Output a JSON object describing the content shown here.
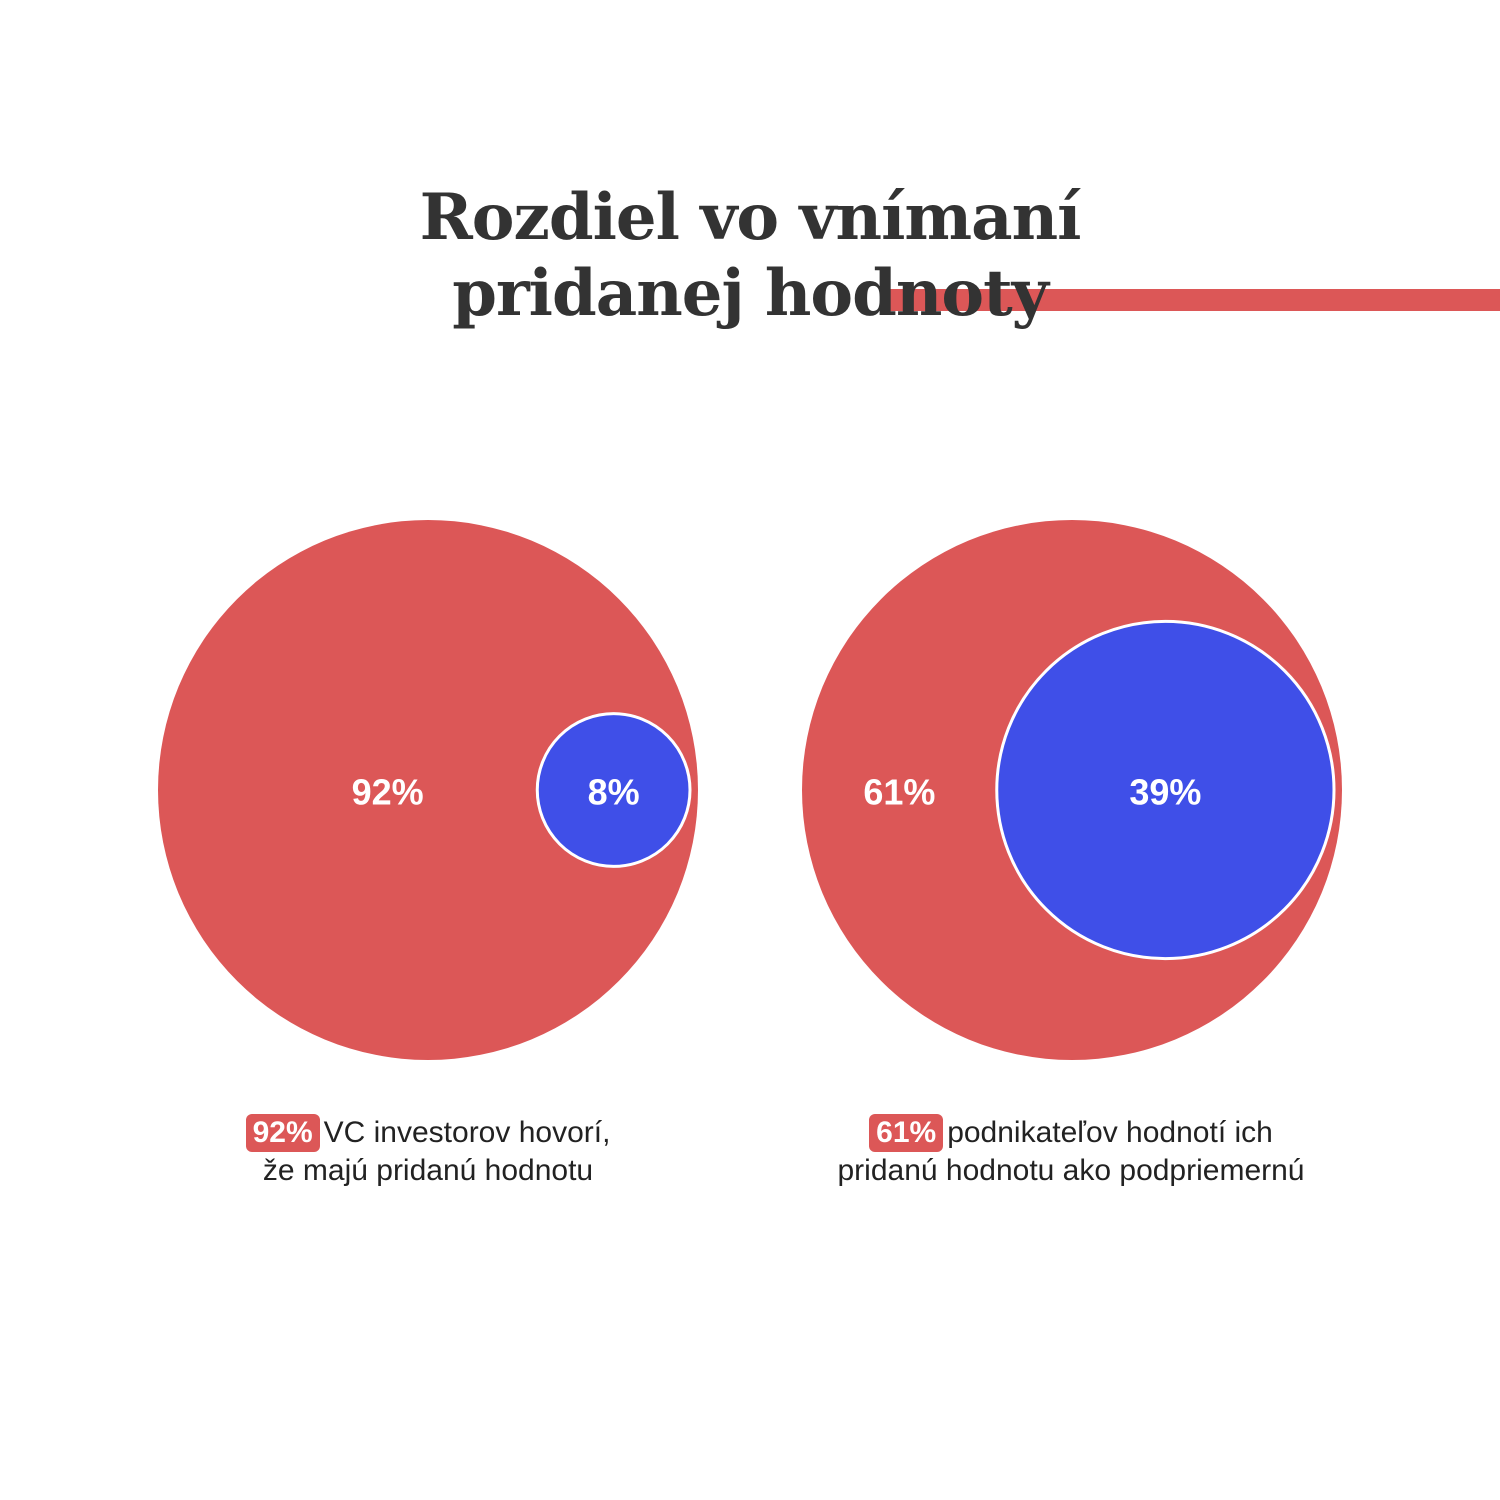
{
  "title": {
    "line1": "Rozdiel vo vnímaní",
    "line2": "pridanej hodnoty"
  },
  "colors": {
    "red": "#dc5757",
    "blue": "#3f4fe8",
    "title": "#333333",
    "background": "#ffffff"
  },
  "chart_data": [
    {
      "type": "pie",
      "categories": [
        "92%",
        "8%"
      ],
      "values": [
        92,
        8
      ],
      "colors": [
        "#dc5757",
        "#3f4fe8"
      ],
      "labels": [
        "92%",
        "8%"
      ]
    },
    {
      "type": "pie",
      "categories": [
        "61%",
        "39%"
      ],
      "values": [
        61,
        39
      ],
      "colors": [
        "#dc5757",
        "#3f4fe8"
      ],
      "labels": [
        "61%",
        "39%"
      ]
    }
  ],
  "captions": [
    {
      "badge": "92%",
      "text1": "VC investorov hovorí,",
      "text2": "že majú pridanú hodnotu"
    },
    {
      "badge": "61%",
      "text1": "podnikateľov hodnotí ich",
      "text2": "pridanú hodnotu ako podpriemernú"
    }
  ]
}
